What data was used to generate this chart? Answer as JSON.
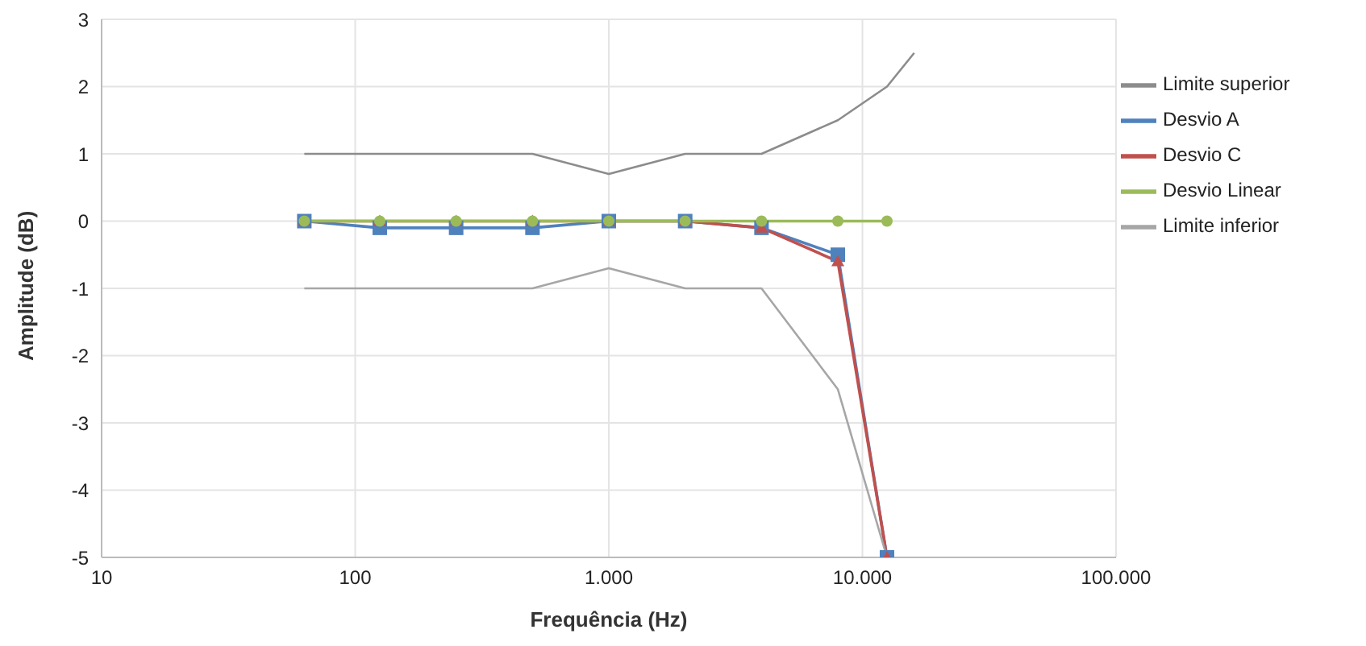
{
  "chart_data": {
    "type": "line",
    "xlabel": "Frequência (Hz)",
    "ylabel": "Amplitude (dB)",
    "log": "x",
    "xlim": [
      10,
      100000
    ],
    "xticks": [
      10,
      100,
      {
        "value": 1000,
        "label": "1.000"
      },
      {
        "value": 10000,
        "label": "10.000"
      },
      {
        "value": 100000,
        "label": "100.000"
      }
    ],
    "ylim": [
      -5,
      3
    ],
    "yticks": [
      -5,
      -4,
      -3,
      -2,
      -1,
      0,
      1,
      2,
      3
    ],
    "grid": true,
    "legend": "top right",
    "series": [
      {
        "name": "Limite superior",
        "color": "#8c8c8c",
        "marker": "none",
        "x": [
          63,
          125,
          250,
          500,
          1000,
          2000,
          4000,
          8000,
          12500,
          16000
        ],
        "values": [
          1,
          1,
          1,
          1,
          0.7,
          1,
          1,
          1.5,
          2,
          2.5
        ]
      },
      {
        "name": "Desvio A",
        "color": "#4f81bd",
        "marker": "square",
        "x": [
          63,
          125,
          250,
          500,
          1000,
          2000,
          4000,
          8000,
          12500
        ],
        "values": [
          0,
          -0.1,
          -0.1,
          -0.1,
          0,
          0,
          -0.1,
          -0.5,
          -5
        ]
      },
      {
        "name": "Desvio C",
        "color": "#c0504d",
        "marker": "triangle",
        "x": [
          63,
          125,
          250,
          500,
          1000,
          2000,
          4000,
          8000,
          12500
        ],
        "values": [
          0,
          0,
          0,
          0,
          0,
          0,
          -0.1,
          -0.6,
          -5
        ]
      },
      {
        "name": "Desvio Linear",
        "color": "#9bbb59",
        "marker": "circle",
        "x": [
          63,
          125,
          250,
          500,
          1000,
          2000,
          4000,
          8000,
          12500
        ],
        "values": [
          0,
          0,
          0,
          0,
          0,
          0,
          0,
          0,
          0
        ]
      },
      {
        "name": "Limite inferior",
        "color": "#a6a6a6",
        "marker": "none",
        "x": [
          63,
          125,
          250,
          500,
          1000,
          2000,
          4000,
          8000,
          12500
        ],
        "values": [
          -1,
          -1,
          -1,
          -1,
          -0.7,
          -1,
          -1,
          -2.5,
          -5
        ]
      }
    ]
  }
}
